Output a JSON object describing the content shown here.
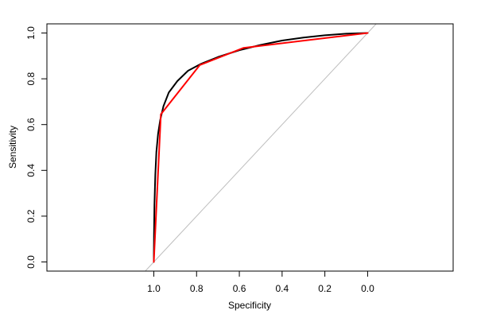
{
  "chart_data": {
    "type": "line",
    "title": "",
    "xlabel": "Specificity",
    "ylabel": "Sensitivity",
    "x_reversed": true,
    "xlim": [
      1.5,
      -0.4
    ],
    "ylim": [
      -0.04,
      1.04
    ],
    "x_ticks": [
      1.0,
      0.8,
      0.6,
      0.4,
      0.2,
      0.0
    ],
    "x_tick_labels": [
      "1.0",
      "0.8",
      "0.6",
      "0.4",
      "0.2",
      "0.0"
    ],
    "y_ticks": [
      0.0,
      0.2,
      0.4,
      0.6,
      0.8,
      1.0
    ],
    "y_tick_labels": [
      "0.0",
      "0.2",
      "0.4",
      "0.6",
      "0.8",
      "1.0"
    ],
    "grid": false,
    "legend": "none",
    "series": [
      {
        "style": "smooth",
        "color": "#000000",
        "points": [
          {
            "x": 1.0,
            "y": 0.0
          },
          {
            "x": 0.999,
            "y": 0.12
          },
          {
            "x": 0.997,
            "y": 0.25
          },
          {
            "x": 0.993,
            "y": 0.38
          },
          {
            "x": 0.988,
            "y": 0.48
          },
          {
            "x": 0.98,
            "y": 0.56
          },
          {
            "x": 0.97,
            "y": 0.62
          },
          {
            "x": 0.955,
            "y": 0.68
          },
          {
            "x": 0.93,
            "y": 0.74
          },
          {
            "x": 0.89,
            "y": 0.79
          },
          {
            "x": 0.84,
            "y": 0.835
          },
          {
            "x": 0.78,
            "y": 0.865
          },
          {
            "x": 0.7,
            "y": 0.895
          },
          {
            "x": 0.6,
            "y": 0.925
          },
          {
            "x": 0.5,
            "y": 0.948
          },
          {
            "x": 0.4,
            "y": 0.967
          },
          {
            "x": 0.3,
            "y": 0.98
          },
          {
            "x": 0.2,
            "y": 0.99
          },
          {
            "x": 0.1,
            "y": 0.997
          },
          {
            "x": 0.0,
            "y": 1.0
          }
        ]
      },
      {
        "style": "empirical",
        "color": "#ff0000",
        "points": [
          {
            "x": 1.0,
            "y": 0.0
          },
          {
            "x": 0.967,
            "y": 0.645
          },
          {
            "x": 0.785,
            "y": 0.86
          },
          {
            "x": 0.58,
            "y": 0.935
          },
          {
            "x": 0.0,
            "y": 1.0
          }
        ]
      },
      {
        "style": "reference",
        "color": "#bebebe",
        "points": [
          {
            "x": 1.04,
            "y": -0.04
          },
          {
            "x": -0.04,
            "y": 1.04
          }
        ]
      }
    ]
  }
}
